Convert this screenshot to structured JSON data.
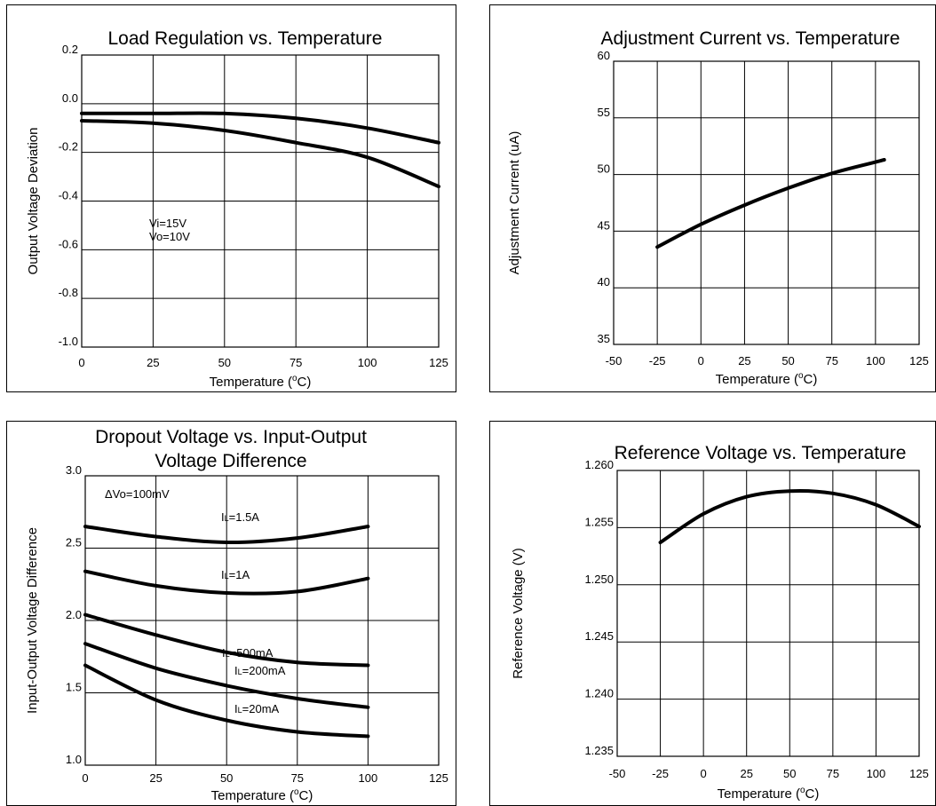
{
  "chart_data": [
    {
      "type": "line",
      "title": "Load Regulation vs. Temperature",
      "xlabel": "Temperature",
      "xlabel_unit": "(oC)",
      "ylabel": "Output Voltage Deviation",
      "xlim": [
        0,
        125
      ],
      "ylim": [
        -1.0,
        0.2
      ],
      "xticks": [
        "0",
        "25",
        "50",
        "75",
        "100",
        "125"
      ],
      "yticks": [
        "0.2",
        "0.0",
        "-0.2",
        "-0.4",
        "-0.6",
        "-0.8",
        "-1.0"
      ],
      "grid": true,
      "annotations": [
        "Vi=15V",
        "Vo=10V"
      ],
      "series": [
        {
          "x": [
            0,
            25,
            50,
            75,
            100,
            125
          ],
          "y": [
            -0.04,
            -0.04,
            -0.04,
            -0.06,
            -0.1,
            -0.16
          ]
        },
        {
          "x": [
            0,
            25,
            50,
            75,
            100,
            125
          ],
          "y": [
            -0.07,
            -0.08,
            -0.11,
            -0.16,
            -0.22,
            -0.34
          ]
        }
      ]
    },
    {
      "type": "line",
      "title": "Adjustment Current vs. Temperature",
      "xlabel": "Temperature",
      "xlabel_unit": "(oC)",
      "ylabel": "Adjustment Current (uA)",
      "xlim": [
        -50,
        125
      ],
      "ylim": [
        35,
        60
      ],
      "xticks": [
        "-50",
        "-25",
        "0",
        "25",
        "50",
        "75",
        "100",
        "125"
      ],
      "yticks": [
        "60",
        "55",
        "50",
        "45",
        "40",
        "35"
      ],
      "grid": true,
      "series": [
        {
          "x": [
            -25,
            0,
            25,
            50,
            75,
            100,
            105
          ],
          "y": [
            43.6,
            45.6,
            47.3,
            48.8,
            50.1,
            51.1,
            51.3
          ]
        }
      ]
    },
    {
      "type": "line",
      "title": "Dropout Voltage vs. Input-Output Voltage Difference",
      "title_lines": [
        "Dropout Voltage vs. Input-Output",
        "Voltage Difference"
      ],
      "xlabel": "Temperature",
      "xlabel_unit": "(oC)",
      "ylabel": "Input-Output Voltage Difference",
      "xlim": [
        0,
        125
      ],
      "ylim": [
        1.0,
        3.0
      ],
      "xticks": [
        "0",
        "25",
        "50",
        "75",
        "100",
        "125"
      ],
      "yticks": [
        "3.0",
        "2.5",
        "2.0",
        "1.5",
        "1.0"
      ],
      "grid": true,
      "annotations": [
        "ΔVo=100mV"
      ],
      "series": [
        {
          "label_main": "I",
          "label_sub": "L",
          "label_rest": "=1.5A",
          "x": [
            0,
            25,
            50,
            75,
            100
          ],
          "y": [
            2.65,
            2.58,
            2.54,
            2.57,
            2.65
          ]
        },
        {
          "label_main": "I",
          "label_sub": "L",
          "label_rest": "=1A",
          "x": [
            0,
            25,
            50,
            75,
            100
          ],
          "y": [
            2.34,
            2.24,
            2.19,
            2.2,
            2.29
          ]
        },
        {
          "label_main": "I",
          "label_sub": "L",
          "label_rest": "=500mA",
          "x": [
            0,
            25,
            50,
            75,
            100
          ],
          "y": [
            2.04,
            1.9,
            1.78,
            1.71,
            1.69
          ]
        },
        {
          "label_main": "I",
          "label_sub": "L",
          "label_rest": "=200mA",
          "x": [
            0,
            25,
            50,
            75,
            100
          ],
          "y": [
            1.84,
            1.67,
            1.55,
            1.46,
            1.4
          ]
        },
        {
          "label_main": "I",
          "label_sub": "L",
          "label_rest": "=20mA",
          "x": [
            0,
            25,
            50,
            75,
            100
          ],
          "y": [
            1.69,
            1.45,
            1.31,
            1.23,
            1.2
          ]
        }
      ]
    },
    {
      "type": "line",
      "title": "Reference Voltage vs. Temperature",
      "xlabel": "Temperature",
      "xlabel_unit": "(oC)",
      "ylabel": "Reference Voltage (V)",
      "xlim": [
        -50,
        125
      ],
      "ylim": [
        1.235,
        1.26
      ],
      "xticks": [
        "-50",
        "-25",
        "0",
        "25",
        "50",
        "75",
        "100",
        "125"
      ],
      "yticks": [
        "1.260",
        "1.255",
        "1.250",
        "1.245",
        "1.240",
        "1.235"
      ],
      "grid": true,
      "series": [
        {
          "x": [
            -25,
            0,
            25,
            50,
            75,
            100,
            125
          ],
          "y": [
            1.2537,
            1.2562,
            1.2577,
            1.2582,
            1.258,
            1.257,
            1.2551
          ]
        }
      ]
    }
  ]
}
